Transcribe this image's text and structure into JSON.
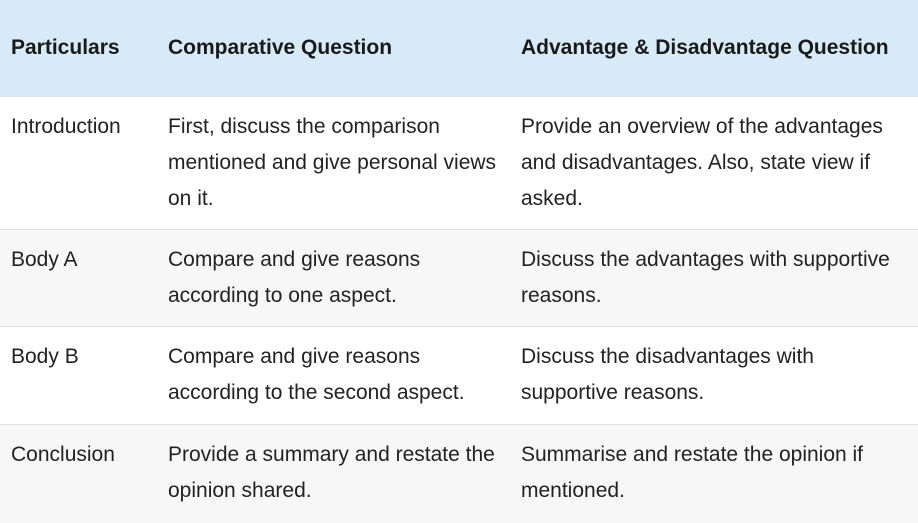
{
  "table": {
    "headers": [
      "Particulars",
      "Comparative Question",
      "Advantage & Disadvantage Question"
    ],
    "rows": [
      {
        "particular": "Introduction",
        "comparative": "First, discuss the comparison mentioned and give personal views on it.",
        "advantage": "Provide an overview of the advantages and disadvantages. Also, state view if asked."
      },
      {
        "particular": "Body A",
        "comparative": "Compare and give reasons according to one aspect.",
        "advantage": "Discuss the advantages with supportive reasons."
      },
      {
        "particular": "Body B",
        "comparative": "Compare and give reasons according to the second aspect.",
        "advantage": "Discuss the disadvantages with supportive reasons."
      },
      {
        "particular": "Conclusion",
        "comparative": "Provide a summary and restate the opinion shared.",
        "advantage": "Summarise and restate the opinion if mentioned."
      }
    ]
  },
  "colors": {
    "header_bg": "#d6ebf7",
    "alt_row_bg": "#f7f7f7"
  }
}
